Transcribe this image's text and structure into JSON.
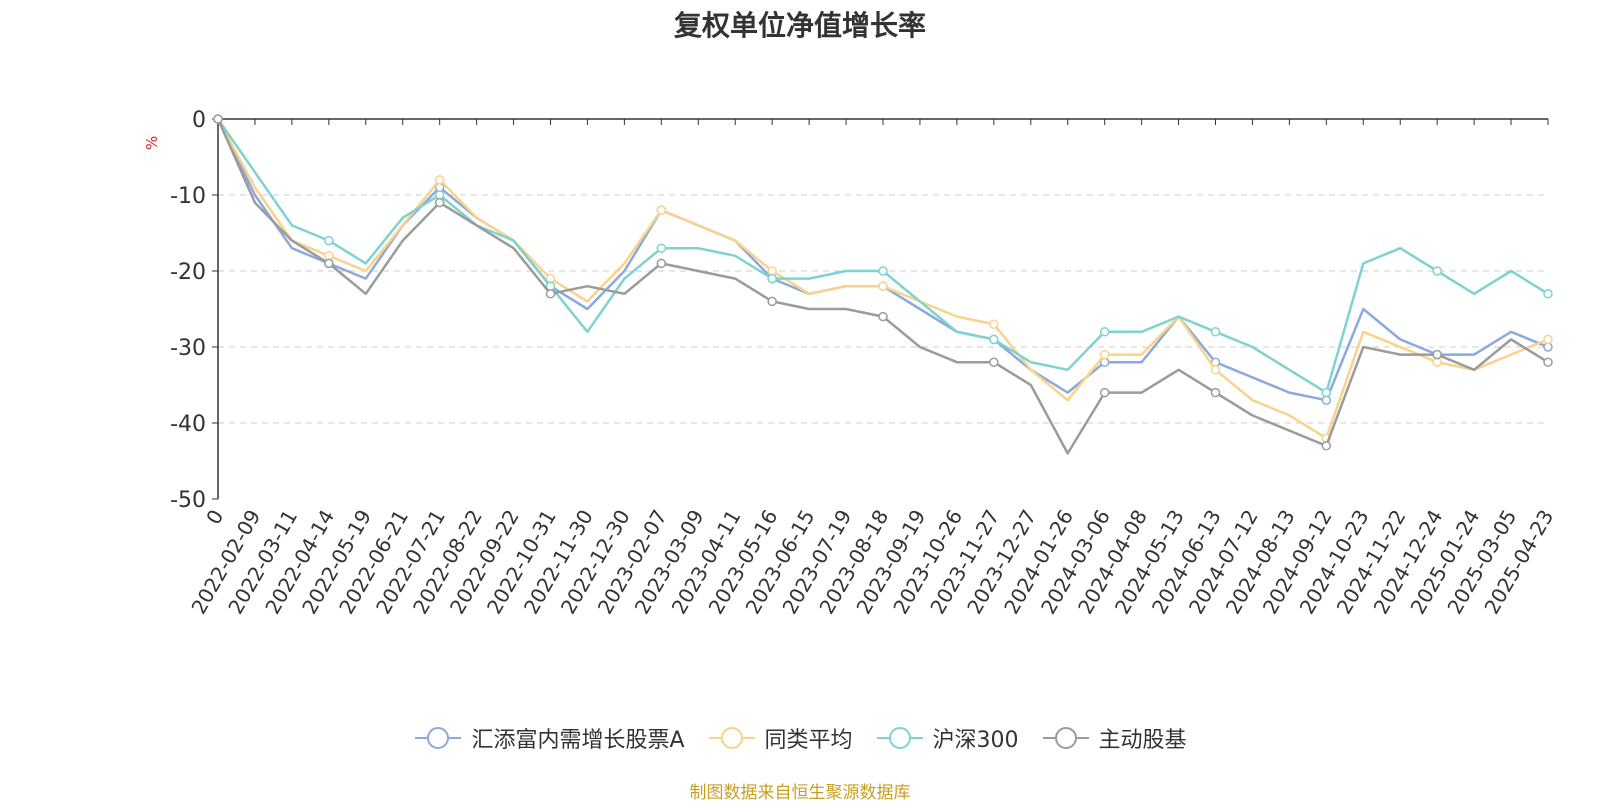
{
  "chart_data": {
    "type": "line",
    "title": "复权单位净值增长率",
    "ylabel": "%",
    "ylim": [
      -50,
      0
    ],
    "yticks": [
      0,
      -10,
      -20,
      -30,
      -40,
      -50
    ],
    "x_labels": [
      "0",
      "2022-02-09",
      "2022-03-11",
      "2022-04-14",
      "2022-05-19",
      "2022-06-21",
      "2022-07-21",
      "2022-08-22",
      "2022-09-22",
      "2022-10-31",
      "2022-11-30",
      "2022-12-30",
      "2023-02-07",
      "2023-03-09",
      "2023-04-11",
      "2023-05-16",
      "2023-06-15",
      "2023-07-19",
      "2023-08-18",
      "2023-09-19",
      "2023-10-26",
      "2023-11-27",
      "2023-12-27",
      "2024-01-26",
      "2024-03-06",
      "2024-04-08",
      "2024-05-13",
      "2024-06-13",
      "2024-07-12",
      "2024-08-13",
      "2024-09-12",
      "2024-10-23",
      "2024-11-22",
      "2024-12-24",
      "2025-01-24",
      "2025-03-05",
      "2025-04-23"
    ],
    "series": [
      {
        "name": "汇添富内需增长股票A",
        "color": "#8ca9dd",
        "values": [
          0,
          -10,
          -17,
          -19,
          -21,
          -14,
          -9,
          -13,
          -16,
          -22,
          -25,
          -20,
          -12,
          -14,
          -16,
          -21,
          -23,
          -22,
          -22,
          -25,
          -28,
          -29,
          -33,
          -36,
          -32,
          -32,
          -26,
          -32,
          -34,
          -36,
          -37,
          -25,
          -29,
          -31,
          -31,
          -28,
          -30
        ]
      },
      {
        "name": "同类平均",
        "color": "#f9d38a",
        "values": [
          0,
          -9,
          -16,
          -18,
          -20,
          -14,
          -8,
          -13,
          -16,
          -21,
          -24,
          -19,
          -12,
          -14,
          -16,
          -20,
          -23,
          -22,
          -22,
          -24,
          -26,
          -27,
          -33,
          -37,
          -31,
          -31,
          -26,
          -33,
          -37,
          -39,
          -42,
          -28,
          -30,
          -32,
          -33,
          -31,
          -29
        ]
      },
      {
        "name": "沪深300",
        "color": "#7ed3d1",
        "values": [
          0,
          -7,
          -14,
          -16,
          -19,
          -13,
          -10,
          -14,
          -16,
          -22,
          -28,
          -21,
          -17,
          -17,
          -18,
          -21,
          -21,
          -20,
          -20,
          -24,
          -28,
          -29,
          -32,
          -33,
          -28,
          -28,
          -26,
          -28,
          -30,
          -33,
          -36,
          -19,
          -17,
          -20,
          -23,
          -20,
          -23
        ]
      },
      {
        "name": "主动股基",
        "color": "#9b9b9b",
        "values": [
          0,
          -11,
          -16,
          -19,
          -23,
          -16,
          -11,
          -14,
          -17,
          -23,
          -22,
          -23,
          -19,
          -20,
          -21,
          -24,
          -25,
          -25,
          -26,
          -30,
          -32,
          -32,
          -35,
          -44,
          -36,
          -36,
          -33,
          -36,
          -39,
          -41,
          -43,
          -30,
          -31,
          -31,
          -33,
          -29,
          -32
        ]
      }
    ]
  },
  "footer": "制图数据来自恒生聚源数据库"
}
